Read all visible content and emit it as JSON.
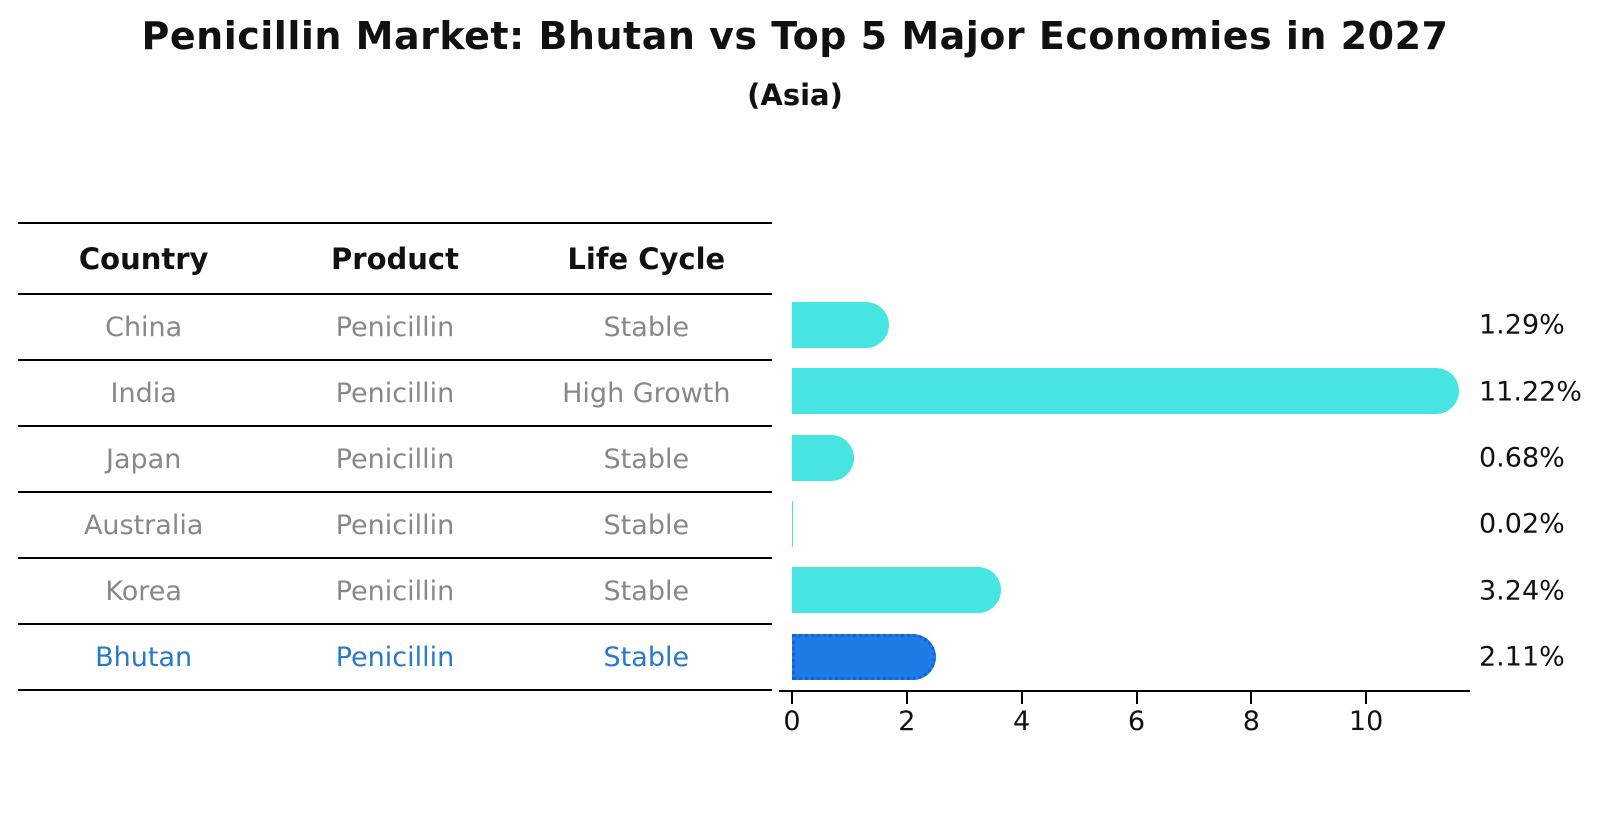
{
  "title": "Penicillin Market: Bhutan vs Top 5 Major Economies in 2027",
  "subtitle": "(Asia)",
  "table": {
    "headers": [
      "Country",
      "Product",
      "Life Cycle"
    ],
    "rows": [
      {
        "country": "China",
        "product": "Penicillin",
        "life_cycle": "Stable",
        "highlight": false
      },
      {
        "country": "India",
        "product": "Penicillin",
        "life_cycle": "High Growth",
        "highlight": false
      },
      {
        "country": "Japan",
        "product": "Penicillin",
        "life_cycle": "Stable",
        "highlight": false
      },
      {
        "country": "Australia",
        "product": "Penicillin",
        "life_cycle": "Stable",
        "highlight": false
      },
      {
        "country": "Korea",
        "product": "Penicillin",
        "life_cycle": "Stable",
        "highlight": false
      },
      {
        "country": "Bhutan",
        "product": "Penicillin",
        "life_cycle": "Stable",
        "highlight": true
      }
    ]
  },
  "chart_data": {
    "type": "bar",
    "orientation": "horizontal",
    "categories": [
      "China",
      "India",
      "Japan",
      "Australia",
      "Korea",
      "Bhutan"
    ],
    "values": [
      1.29,
      11.22,
      0.68,
      0.02,
      3.24,
      2.11
    ],
    "labels": [
      "1.29%",
      "11.22%",
      "0.68%",
      "0.02%",
      "3.24%",
      "2.11%"
    ],
    "xticks": [
      0,
      2,
      4,
      6,
      8,
      10
    ],
    "xlim": [
      0,
      11.81
    ],
    "grid": false,
    "legend": false,
    "bar_color": "#46E5E1",
    "highlight_index": 5,
    "highlight_color": "#1E7CE6",
    "highlight_border_color": "#1563D2",
    "highlight_text_color": "#2878CE",
    "row_text_color": "#888888",
    "axis_color": "#000000"
  }
}
